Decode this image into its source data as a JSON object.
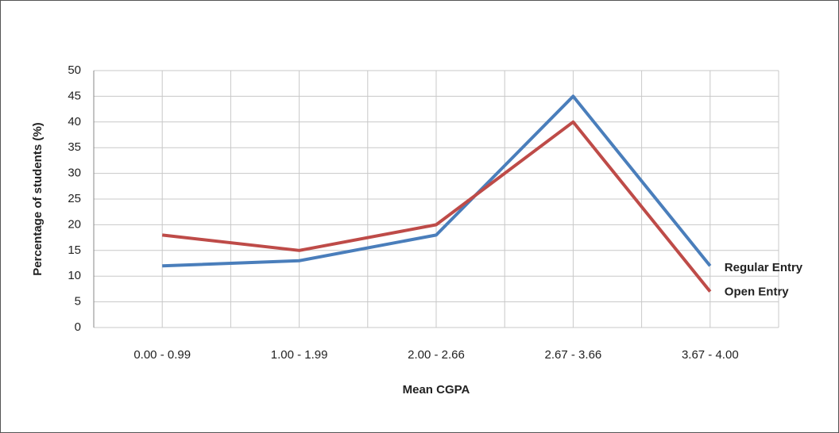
{
  "chart_data": {
    "type": "line",
    "xlabel": "Mean CGPA",
    "ylabel": "Percentage of students   (%)",
    "categories": [
      "0.00 - 0.99",
      "1.00 - 1.99",
      "2.00 - 2.66",
      "2.67 - 3.66",
      "3.67 - 4.00"
    ],
    "series": [
      {
        "name": "Regular Entry",
        "color": "#4a7ebb",
        "values": [
          12,
          13,
          18,
          45,
          12
        ]
      },
      {
        "name": "Open Entry",
        "color": "#be4b48",
        "values": [
          18,
          15,
          20,
          40,
          7
        ]
      }
    ],
    "ylim": [
      0,
      50
    ],
    "yticks": [
      0,
      5,
      10,
      15,
      20,
      25,
      30,
      35,
      40,
      45,
      50
    ],
    "grid": true
  }
}
